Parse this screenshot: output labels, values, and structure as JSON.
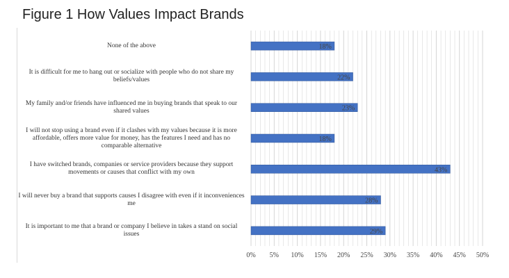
{
  "figure": {
    "title": "Figure 1 How Values Impact Brands"
  },
  "colors": {
    "bar": "#4472C4",
    "bar_edge": "#2F5597",
    "grid": "#d0d0d0",
    "label": "#444444"
  },
  "chart_data": {
    "type": "bar",
    "orientation": "horizontal",
    "categories": [
      "None of the above",
      "It is difficult for me to hang out or socialize with people who do not share my beliefs/values",
      "My family and/or friends have influenced me in buying brands that speak to our shared values",
      "I will not stop using a brand even if it clashes with my values because it is more affordable, offers more value for money, has the features I need and has no comparable alternative",
      "I have switched brands, companies or service providers because they support movements or causes that conflict with my own",
      "I will never buy a brand that supports causes I disagree with even if it inconveniences me",
      "It is important to me that a brand or company I believe in takes a stand on social issues"
    ],
    "values": [
      18,
      22,
      23,
      18,
      43,
      28,
      29
    ],
    "data_labels": [
      "18%",
      "22%",
      "23%",
      "18%",
      "43%",
      "28%",
      "29%"
    ],
    "xlim": [
      0,
      50
    ],
    "xticks": [
      "0%",
      "5%",
      "10%",
      "15%",
      "20%",
      "25%",
      "30%",
      "35%",
      "40%",
      "45%",
      "50%"
    ],
    "minor_gridlines": true,
    "xlabel": "",
    "ylabel": ""
  }
}
